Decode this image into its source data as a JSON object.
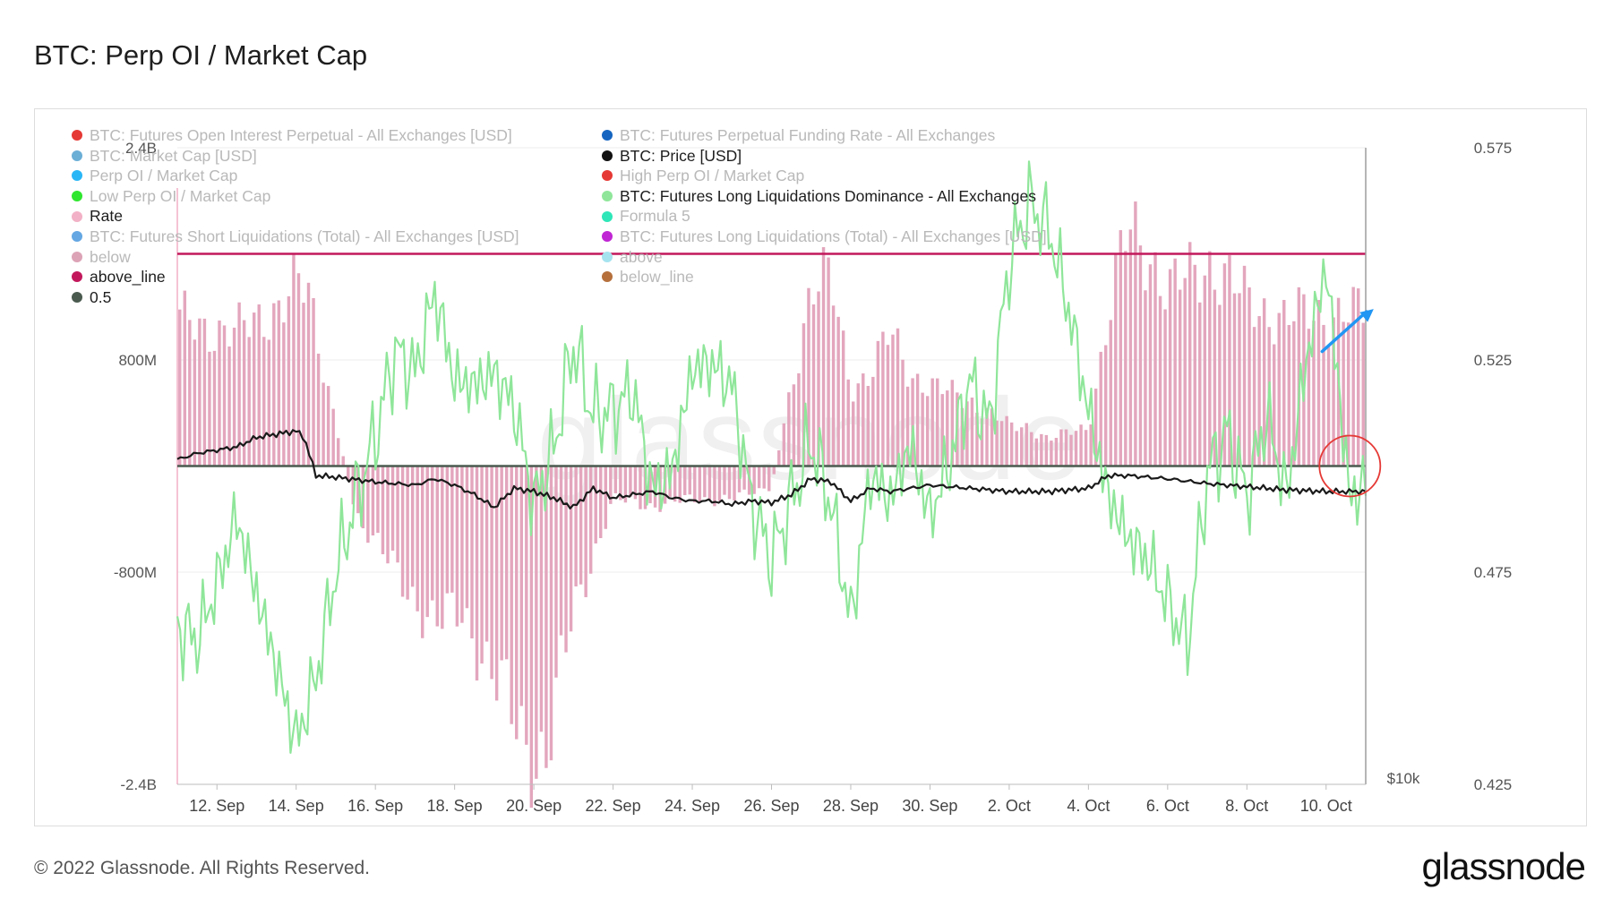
{
  "title": "BTC: Perp OI / Market Cap",
  "footer": "© 2022 Glassnode. All Rights Reserved.",
  "brand": "glassnode",
  "watermark": "glassnode",
  "colors": {
    "rate_bar": "#e3a6bd",
    "rate_line": "#f2b1c6",
    "above_line": "#c2185b",
    "zero_line": "#4a5a4f",
    "price": "#1a1a1a",
    "long_liq": "#8fe69a",
    "arrow": "#2196f3",
    "circle": "#e53935",
    "grid": "#ececec"
  },
  "legend": {
    "left": [
      {
        "label": "BTC: Futures Open Interest Perpetual - All Exchanges [USD]",
        "color": "#e53935",
        "active": false
      },
      {
        "label": "BTC: Market Cap [USD]",
        "color": "#6baed6",
        "active": false
      },
      {
        "label": "Perp OI / Market Cap",
        "color": "#29b6f6",
        "active": false
      },
      {
        "label": "Low Perp OI / Market Cap",
        "color": "#2ee62e",
        "active": false
      },
      {
        "label": "Rate",
        "color": "#f2b1c6",
        "active": true
      },
      {
        "label": "BTC: Futures Short Liquidations (Total) - All Exchanges [USD]",
        "color": "#64a7e3",
        "active": false
      },
      {
        "label": "below",
        "color": "#dca3b6",
        "active": false
      },
      {
        "label": "above_line",
        "color": "#c2185b",
        "active": true
      },
      {
        "label": "0.5",
        "color": "#4a5a4f",
        "active": true
      }
    ],
    "right": [
      {
        "label": "BTC: Futures Perpetual Funding Rate - All Exchanges",
        "color": "#1565c0",
        "active": false
      },
      {
        "label": "BTC: Price [USD]",
        "color": "#111111",
        "active": true
      },
      {
        "label": "High Perp OI / Market Cap",
        "color": "#e53935",
        "active": false
      },
      {
        "label": "BTC: Futures Long Liquidations Dominance - All Exchanges",
        "color": "#8fe69a",
        "active": true
      },
      {
        "label": "Formula 5",
        "color": "#2ee6b8",
        "active": false
      },
      {
        "label": "BTC: Futures Long Liquidations (Total) - All Exchanges [USD]",
        "color": "#c026d3",
        "active": false
      },
      {
        "label": "above",
        "color": "#a5e3ef",
        "active": false
      },
      {
        "label": "below_line",
        "color": "#b5703c",
        "active": false
      }
    ]
  },
  "chart_data": {
    "type": "bar+line",
    "x_range": [
      "2022-09-11",
      "2022-10-10"
    ],
    "xticks": [
      "12. Sep",
      "14. Sep",
      "16. Sep",
      "18. Sep",
      "20. Sep",
      "22. Sep",
      "24. Sep",
      "26. Sep",
      "28. Sep",
      "30. Sep",
      "2. Oct",
      "4. Oct",
      "6. Oct",
      "8. Oct",
      "10. Oct"
    ],
    "xtick_days": [
      1,
      3,
      5,
      7,
      9,
      11,
      13,
      15,
      17,
      19,
      21,
      23,
      25,
      27,
      29
    ],
    "left_axis": {
      "label": "Rate",
      "ticks": [
        "2.4B",
        "800M",
        "-800M",
        "-2.4B"
      ],
      "tick_values": [
        2400000000,
        800000000,
        -800000000,
        -2400000000
      ],
      "range": [
        -2400000000,
        2400000000
      ]
    },
    "right_axis": {
      "ticks": [
        "0.575",
        "0.525",
        "0.475",
        "0.425"
      ],
      "tick_values": [
        0.575,
        0.525,
        0.475,
        0.425
      ],
      "range": [
        0.425,
        0.575
      ]
    },
    "price_axis_label": "$10k",
    "above_line_value": 0.55,
    "zero_line_value": 0.5,
    "series": [
      {
        "name": "Rate",
        "type": "bar",
        "x_days": [
          0,
          1.5,
          2.5,
          3.0,
          3.3,
          4.5,
          5.5,
          6.5,
          7.2,
          8.0,
          8.8,
          9.3,
          10.0,
          11.0,
          12.0,
          13.0,
          14.0,
          15.0,
          16.0,
          16.5,
          17.0,
          17.5,
          18.0,
          18.5,
          19.0,
          20.0,
          21.0,
          21.5,
          22.0,
          23.0,
          23.5,
          24.0,
          24.5,
          25.0,
          26.0,
          27.0,
          28.0,
          28.5,
          29.0,
          30.0
        ],
        "values": [
          1100000000,
          1000000000,
          1200000000,
          1350000000,
          1300000000,
          -350000000,
          -800000000,
          -1200000000,
          -1100000000,
          -1600000000,
          -2100000000,
          -2200000000,
          -1100000000,
          -250000000,
          -300000000,
          -250000000,
          -250000000,
          -150000000,
          1350000000,
          1400000000,
          600000000,
          700000000,
          1000000000,
          700000000,
          600000000,
          500000000,
          300000000,
          300000000,
          200000000,
          300000000,
          1100000000,
          1800000000,
          1650000000,
          1300000000,
          1550000000,
          1250000000,
          1100000000,
          1150000000,
          1150000000,
          1150000000
        ]
      },
      {
        "name": "BTC: Price [USD]",
        "type": "line",
        "x_days": [
          0,
          0.5,
          1.0,
          1.5,
          2.0,
          2.5,
          3.0,
          3.2,
          3.5,
          4.0,
          5.0,
          6.0,
          6.5,
          7.0,
          7.5,
          8.0,
          8.5,
          9.0,
          9.5,
          10.0,
          10.5,
          11.0,
          11.5,
          12.0,
          12.5,
          13.0,
          13.5,
          14.0,
          14.5,
          15.0,
          15.5,
          16.0,
          16.5,
          17.0,
          17.5,
          18.0,
          19.0,
          20.0,
          21.0,
          22.0,
          23.0,
          23.5,
          24.0,
          25.0,
          26.0,
          27.0,
          28.0,
          29.0,
          30.0
        ],
        "values": [
          20200,
          20400,
          20500,
          20600,
          20900,
          21000,
          21100,
          20900,
          19700,
          19650,
          19500,
          19400,
          19600,
          19400,
          19100,
          18700,
          19300,
          19200,
          19000,
          18700,
          19300,
          19000,
          19100,
          19200,
          19000,
          18900,
          18900,
          18800,
          18900,
          18850,
          19100,
          19600,
          19500,
          18900,
          19300,
          19200,
          19400,
          19300,
          19200,
          19200,
          19300,
          19700,
          19700,
          19600,
          19450,
          19350,
          19250,
          19200,
          19200
        ]
      },
      {
        "name": "BTC: Futures Long Liquidations Dominance - All Exchanges",
        "type": "line",
        "x_days": [
          0,
          0.5,
          1.0,
          1.5,
          2.0,
          2.5,
          3.0,
          3.5,
          4.0,
          4.5,
          5.0,
          5.5,
          6.0,
          6.5,
          7.0,
          7.5,
          8.0,
          8.5,
          9.0,
          9.5,
          10.0,
          10.5,
          11.0,
          11.5,
          12.0,
          12.5,
          13.0,
          13.5,
          14.0,
          14.5,
          15.0,
          15.5,
          16.0,
          16.5,
          17.0,
          17.5,
          18.0,
          18.5,
          19.0,
          19.5,
          20.0,
          20.5,
          21.0,
          21.5,
          22.0,
          22.5,
          23.0,
          23.5,
          24.0,
          24.5,
          25.0,
          25.5,
          26.0,
          26.5,
          27.0,
          27.5,
          28.0,
          28.5,
          29.0,
          29.3,
          29.6,
          30.0
        ],
        "values": [
          0.462,
          0.459,
          0.472,
          0.488,
          0.47,
          0.453,
          0.435,
          0.45,
          0.475,
          0.492,
          0.507,
          0.527,
          0.522,
          0.541,
          0.52,
          0.519,
          0.522,
          0.514,
          0.491,
          0.504,
          0.529,
          0.512,
          0.513,
          0.518,
          0.494,
          0.499,
          0.523,
          0.524,
          0.519,
          0.491,
          0.478,
          0.492,
          0.506,
          0.491,
          0.463,
          0.498,
          0.492,
          0.505,
          0.488,
          0.501,
          0.52,
          0.509,
          0.548,
          0.562,
          0.556,
          0.537,
          0.513,
          0.493,
          0.483,
          0.478,
          0.468,
          0.458,
          0.498,
          0.508,
          0.493,
          0.512,
          0.493,
          0.525,
          0.547,
          0.52,
          0.492,
          0.496
        ]
      }
    ],
    "annotations": [
      {
        "type": "arrow",
        "from_day": 28.9,
        "from_value": 0.527,
        "to_day": 30.2,
        "to_value": 0.537
      },
      {
        "type": "circle",
        "center_day": 29.6,
        "center_value": 0.5
      }
    ]
  }
}
